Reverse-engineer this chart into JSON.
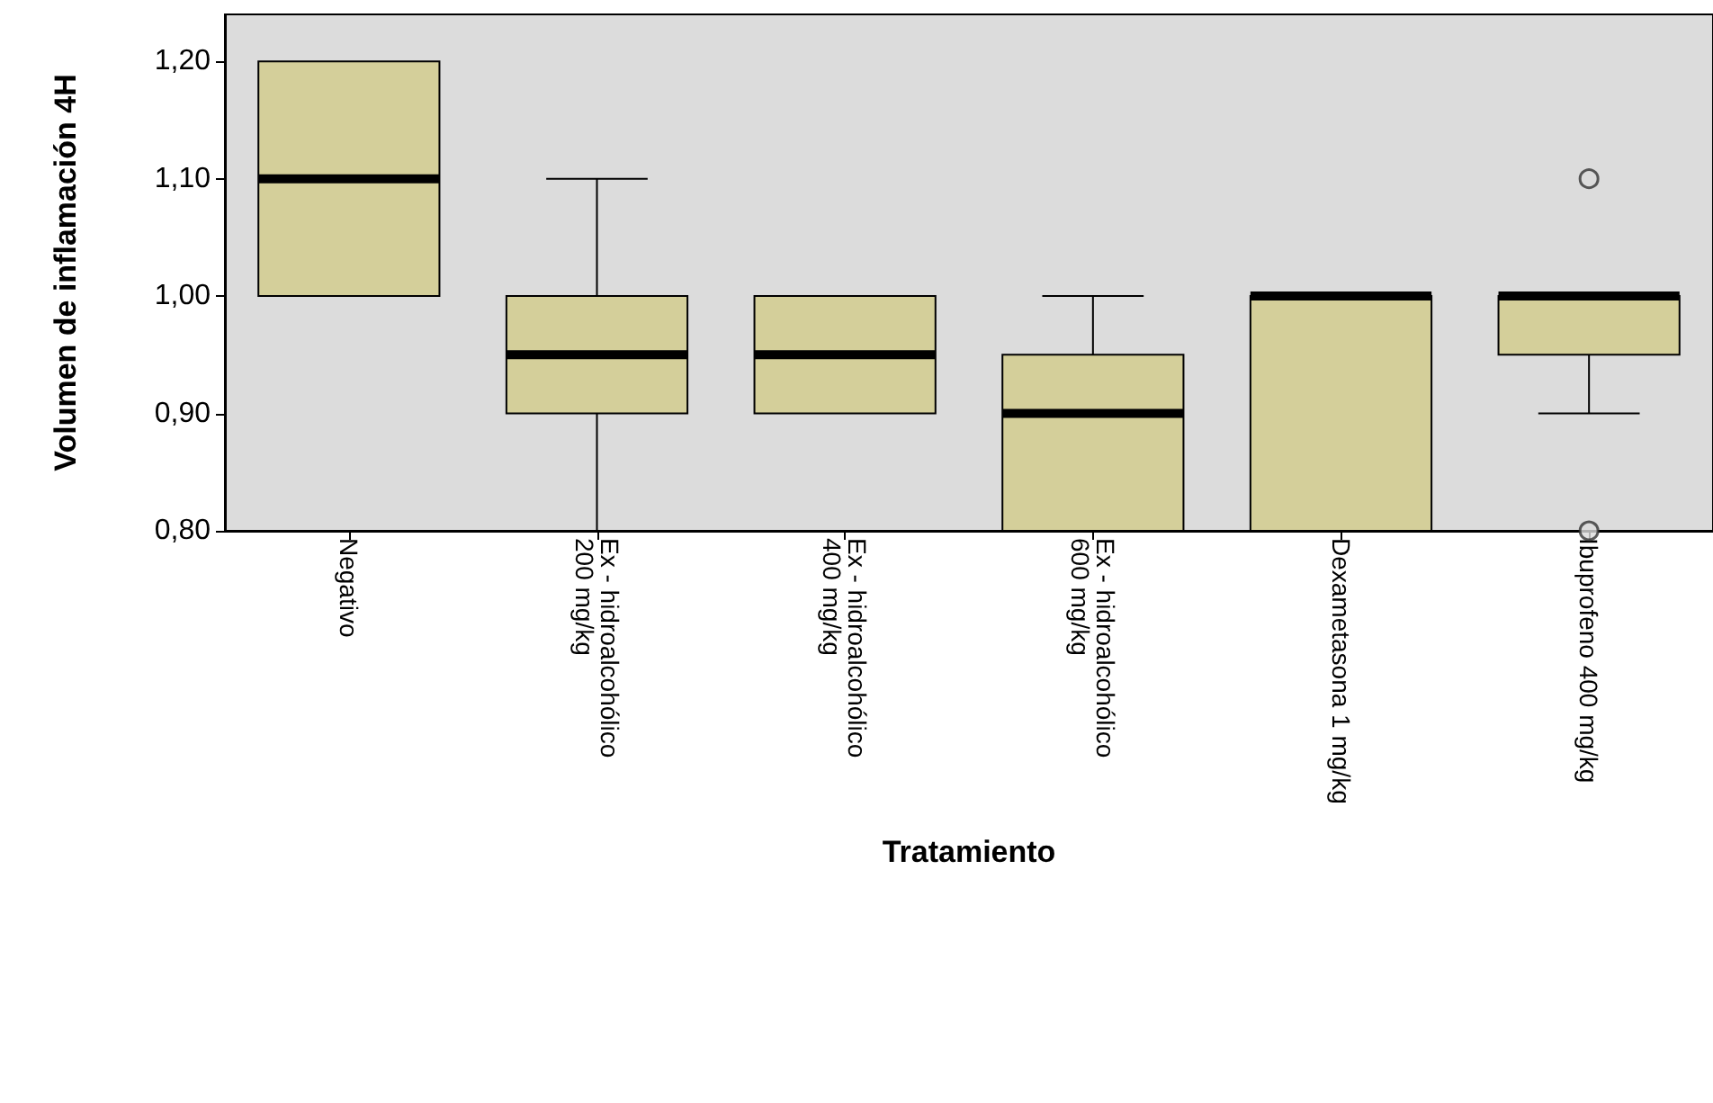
{
  "chart_data": {
    "type": "box",
    "xlabel": "Tratamiento",
    "ylabel": "Volumen de inflamación 4H",
    "categories": [
      "Negativo",
      "Ex - hidroalcohólico 200 mg/kg",
      "Ex - hidroalcohólico 400 mg/kg",
      "Ex - hidroalcohólico 600 mg/kg",
      "Dexametasona 1 mg/kg",
      "Ibuprofeno 400 mg/kg"
    ],
    "color": "#d4cf9a",
    "boxes": [
      {
        "low": 1.0,
        "q1": 1.0,
        "median": 1.1,
        "q3": 1.2,
        "high": 1.2
      },
      {
        "low": 0.8,
        "q1": 0.9,
        "median": 0.95,
        "q3": 1.0,
        "high": 1.1
      },
      {
        "low": 0.9,
        "q1": 0.9,
        "median": 0.95,
        "q3": 1.0,
        "high": 1.0
      },
      {
        "low": 0.8,
        "q1": 0.8,
        "median": 0.9,
        "q3": 0.95,
        "high": 1.0
      },
      {
        "low": 0.8,
        "q1": 0.8,
        "median": 1.0,
        "q3": 1.0,
        "high": 1.0
      },
      {
        "low": 0.9,
        "q1": 0.95,
        "median": 1.0,
        "q3": 1.0,
        "high": 1.0,
        "outliers": [
          1.1,
          0.8
        ]
      }
    ],
    "ylim": [
      0.8,
      1.24
    ],
    "yticks": [
      {
        "value": 0.8,
        "label": "0,80"
      },
      {
        "value": 0.9,
        "label": "0,90"
      },
      {
        "value": 1.0,
        "label": "1,00"
      },
      {
        "value": 1.1,
        "label": "1,10"
      },
      {
        "value": 1.2,
        "label": "1,20"
      }
    ],
    "grid": false
  }
}
